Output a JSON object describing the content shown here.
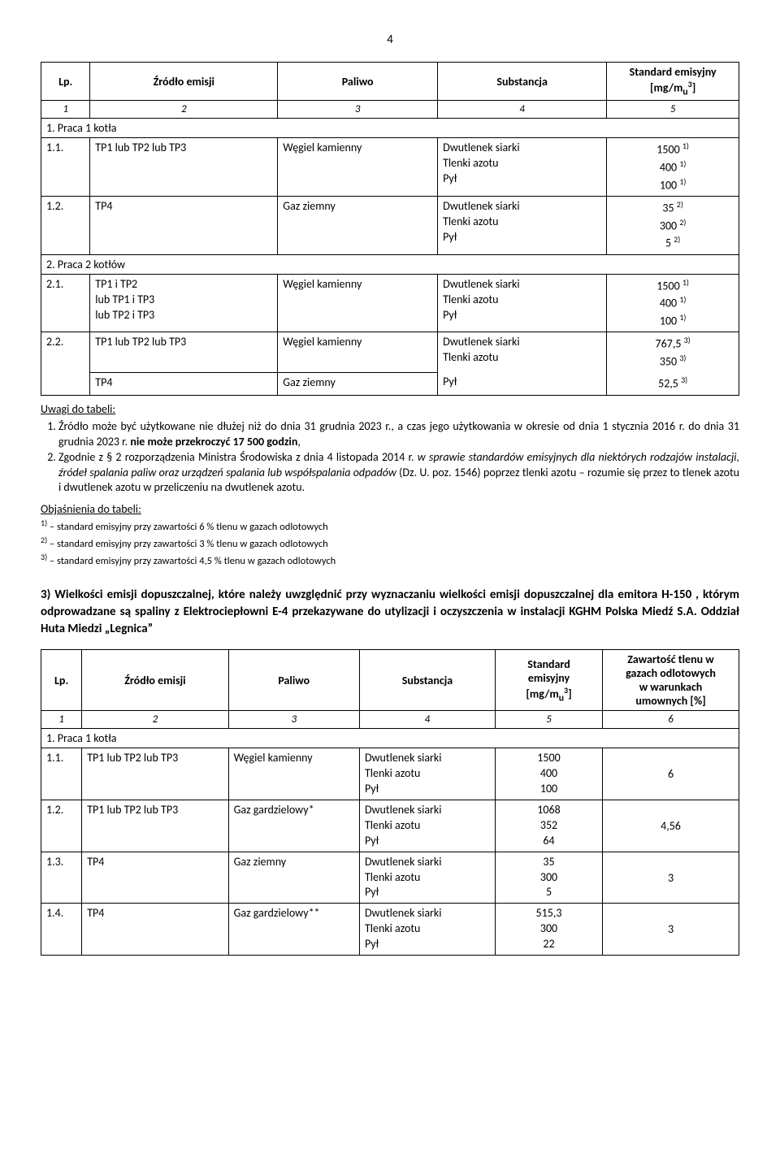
{
  "page_number": "4",
  "table1": {
    "headers": {
      "lp": "Lp.",
      "src": "Źródło emisji",
      "fuel": "Paliwo",
      "sub": "Substancja",
      "std_line1": "Standard emisyjny",
      "std_line2": "[mg/m",
      "std_sub": "u",
      "std_sup": "3",
      "std_close": "]"
    },
    "colnums": {
      "c1": "1",
      "c2": "2",
      "c3": "3",
      "c4": "4",
      "c5": "5"
    },
    "section1": "1. Praca 1 kotła",
    "r11": {
      "lp": "1.1.",
      "src": "TP1 lub TP2 lub TP3",
      "fuel": "Węgiel kamienny",
      "sub1": "Dwutlenek siarki",
      "sub2": "Tlenki azotu",
      "sub3": "Pył",
      "v1": "1500",
      "v2": "400",
      "v3": "100",
      "s1": "1)",
      "s2": "1)",
      "s3": "1)"
    },
    "r12": {
      "lp": "1.2.",
      "src": "TP4",
      "fuel": "Gaz ziemny",
      "sub1": "Dwutlenek siarki",
      "sub2": "Tlenki azotu",
      "sub3": "Pył",
      "v1": "35",
      "v2": "300",
      "v3": "5",
      "s1": "2)",
      "s2": "2)",
      "s3": "2)"
    },
    "section2": "2. Praca 2 kotłów",
    "r21": {
      "lp": "2.1.",
      "src1": "TP1 i TP2",
      "src2": "lub TP1 i TP3",
      "src3": "lub TP2 i TP3",
      "fuel": "Węgiel kamienny",
      "sub1": "Dwutlenek siarki",
      "sub2": "Tlenki azotu",
      "sub3": "Pył",
      "v1": "1500",
      "v2": "400",
      "v3": "100",
      "s1": "1)",
      "s2": "1)",
      "s3": "1)"
    },
    "r22a": {
      "lp": "2.2.",
      "src": "TP1 lub TP2 lub TP3",
      "fuel": "Węgiel kamienny",
      "sub1": "Dwutlenek siarki",
      "sub2": "Tlenki azotu",
      "v1": "767,5",
      "v2": "350",
      "s1": "3)",
      "s2": "3)"
    },
    "r22b": {
      "src": "TP4",
      "fuel": "Gaz ziemny",
      "sub1": "Pył",
      "v1": "52,5",
      "s1": "3)"
    }
  },
  "notes1": {
    "heading": "Uwagi do tabeli:",
    "li1a": "Źródło może być użytkowane nie dłużej niż do dnia 31 grudnia 2023 r., a czas jego użytkowania w okresie od dnia 1 stycznia 2016 r. do dnia 31 grudnia 2023 r. ",
    "li1b": "nie może przekroczyć 17 500 godzin",
    "li1c": ",",
    "li2a": "Zgodnie z § 2 rozporządzenia Ministra Środowiska z dnia 4 listopada 2014 r. ",
    "li2b": "w sprawie standardów emisyjnych dla niektórych rodzajów instalacji, źródeł spalania paliw oraz urządzeń spalania lub współspalania odpadów",
    "li2c": " (Dz. U. poz. 1546) poprzez tlenki azotu – rozumie się przez to tlenek azotu i dwutlenek azotu w przeliczeniu na dwutlenek azotu.",
    "obj": "Objaśnienia do tabeli:",
    "f1_sup": "1)",
    "f1": " – standard emisyjny przy zawartości 6 % tlenu w gazach odlotowych",
    "f2_sup": "2)",
    "f2": " – standard emisyjny przy zawartości 3 % tlenu w gazach odlotowych",
    "f3_sup": "3)",
    "f3": " – standard emisyjny przy zawartości 4,5 % tlenu w gazach odlotowych"
  },
  "section3": {
    "num": "3) ",
    "text": "Wielkości emisji dopuszczalnej, które należy uwzględnić przy wyznaczaniu wielkości emisji dopuszczalnej dla emitora H-150 , którym odprowadzane są spaliny z Elektrociepłowni E-4 przekazywane do utylizacji i oczyszczenia w instalacji KGHM Polska Miedź S.A. Oddział Huta Miedzi „Legnica”"
  },
  "table2": {
    "headers": {
      "lp": "Lp.",
      "src": "Źródło emisji",
      "fuel": "Paliwo",
      "sub": "Substancja",
      "std_l1": "Standard",
      "std_l2": "emisyjny",
      "std_l3a": "[mg/m",
      "std_sub": "u",
      "std_sup": "3",
      "std_l3b": "]",
      "o2_l1": "Zawartość tlenu w",
      "o2_l2": "gazach odlotowych",
      "o2_l3": "w warunkach",
      "o2_l4": "umownych [%]"
    },
    "colnums": {
      "c1": "1",
      "c2": "2",
      "c3": "3",
      "c4": "4",
      "c5": "5",
      "c6": "6"
    },
    "section1": "1. Praca 1 kotła",
    "r11": {
      "lp": "1.1.",
      "src": "TP1 lub TP2 lub TP3",
      "fuel": "Węgiel kamienny",
      "sub1": "Dwutlenek siarki",
      "sub2": "Tlenki azotu",
      "sub3": "Pył",
      "v1": "1500",
      "v2": "400",
      "v3": "100",
      "o2": "6"
    },
    "r12": {
      "lp": "1.2.",
      "src": "TP1 lub TP2 lub TP3",
      "fuel": "Gaz gardzielowy*",
      "sub1": "Dwutlenek siarki",
      "sub2": "Tlenki azotu",
      "sub3": "Pył",
      "v1": "1068",
      "v2": "352",
      "v3": "64",
      "o2": "4,56"
    },
    "r13": {
      "lp": "1.3.",
      "src": "TP4",
      "fuel": "Gaz ziemny",
      "sub1": "Dwutlenek siarki",
      "sub2": "Tlenki azotu",
      "sub3": "Pył",
      "v1": "35",
      "v2": "300",
      "v3": "5",
      "o2": "3"
    },
    "r14": {
      "lp": "1.4.",
      "src": "TP4",
      "fuel": "Gaz gardzielowy**",
      "sub1": "Dwutlenek siarki",
      "sub2": "Tlenki azotu",
      "sub3": "Pył",
      "v1": "515,3",
      "v2": "300",
      "v3": "22",
      "o2": "3"
    }
  }
}
